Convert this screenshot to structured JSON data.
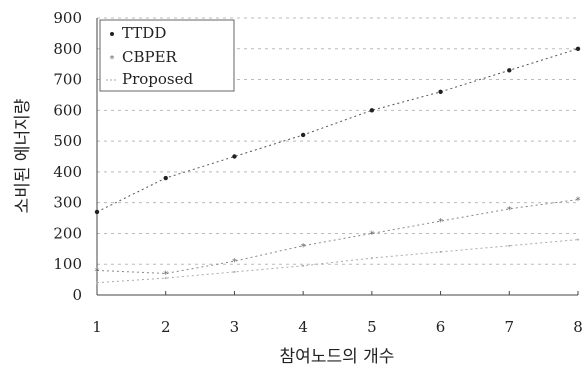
{
  "chart_data": {
    "type": "line",
    "title": "",
    "xlabel": "참여노드의 개수",
    "ylabel": "소비된 에너지량",
    "x": [
      1,
      2,
      3,
      4,
      5,
      6,
      7,
      8
    ],
    "xlim": [
      1,
      8
    ],
    "ylim": [
      0,
      900
    ],
    "x_ticks": [
      "1",
      "2",
      "3",
      "4",
      "5",
      "6",
      "7",
      "8"
    ],
    "y_ticks": [
      "0",
      "100",
      "200",
      "300",
      "400",
      "500",
      "600",
      "700",
      "800",
      "900"
    ],
    "grid": true,
    "legend_position": "top-left",
    "series": [
      {
        "name": "TTDD",
        "values": [
          270,
          380,
          450,
          520,
          600,
          660,
          730,
          800
        ],
        "color": "#555555",
        "marker": "dot"
      },
      {
        "name": "CBPER",
        "values": [
          80,
          70,
          110,
          160,
          200,
          240,
          280,
          310
        ],
        "color": "#888888",
        "marker": "star"
      },
      {
        "name": "Proposed",
        "values": [
          40,
          55,
          75,
          95,
          120,
          140,
          160,
          180
        ],
        "color": "#aaaaaa",
        "marker": "none"
      }
    ]
  }
}
